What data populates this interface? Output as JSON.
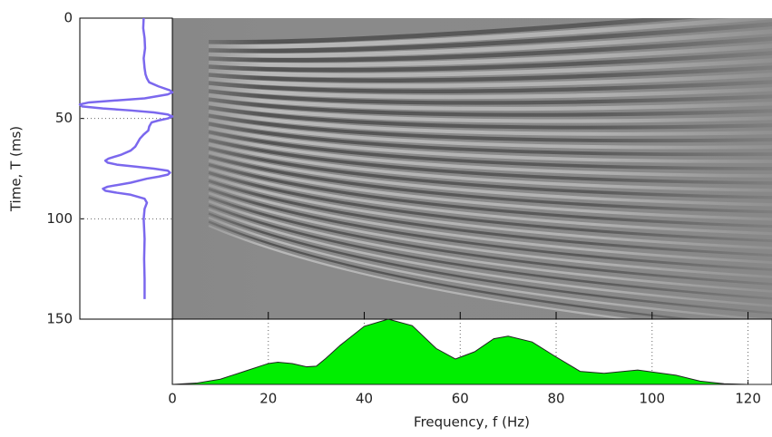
{
  "chart_data": [
    {
      "type": "trace",
      "ylabel": "Time, T (ms)",
      "time": [
        0,
        5,
        10,
        15,
        20,
        25,
        28,
        30,
        32,
        34,
        36,
        37,
        38,
        40,
        41,
        42,
        43,
        44,
        45,
        46,
        47,
        48,
        49,
        50,
        51,
        52,
        54,
        56,
        58,
        60,
        62,
        64,
        66,
        68,
        70,
        71,
        72,
        73,
        74,
        75,
        76,
        77,
        78,
        79,
        80,
        82,
        84,
        85,
        86,
        87,
        88,
        90,
        92,
        95,
        100,
        110,
        120,
        130,
        140
      ],
      "values": [
        -0.02,
        -0.03,
        0,
        0.01,
        -0.02,
        0,
        0.02,
        0.05,
        0.1,
        0.3,
        0.55,
        0.6,
        0.5,
        0,
        -0.6,
        -1.2,
        -1.4,
        -1.35,
        -0.9,
        -0.3,
        0.2,
        0.5,
        0.6,
        0.5,
        0.3,
        0.15,
        0.1,
        0.08,
        -0.02,
        -0.1,
        -0.15,
        -0.2,
        -0.3,
        -0.5,
        -0.78,
        -0.85,
        -0.8,
        -0.6,
        -0.2,
        0.2,
        0.5,
        0.55,
        0.5,
        0.3,
        0.05,
        -0.3,
        -0.8,
        -0.9,
        -0.85,
        -0.6,
        -0.3,
        0,
        0.05,
        0,
        -0.02,
        0,
        -0.01,
        0,
        0
      ],
      "color": "#7b68ee",
      "xlim": [
        -1.4,
        0.6
      ],
      "ylim": [
        0,
        150
      ],
      "yticks": [
        0,
        50,
        100,
        150
      ],
      "grid": true
    },
    {
      "type": "area",
      "xlabel": "Frequency, f (Hz)",
      "x": [
        0,
        5,
        10,
        15,
        20,
        22,
        25,
        28,
        30,
        32,
        35,
        40,
        45,
        50,
        55,
        59,
        63,
        67,
        70,
        75,
        80,
        85,
        90,
        97,
        105,
        110,
        115,
        120,
        125
      ],
      "values": [
        0,
        0.02,
        0.08,
        0.2,
        0.32,
        0.34,
        0.32,
        0.27,
        0.28,
        0.4,
        0.6,
        0.89,
        1.0,
        0.9,
        0.55,
        0.39,
        0.5,
        0.7,
        0.74,
        0.65,
        0.42,
        0.2,
        0.17,
        0.22,
        0.14,
        0.05,
        0.01,
        0,
        0
      ],
      "color": "#00ee00",
      "xlim": [
        0,
        125
      ],
      "ylim": [
        0,
        1
      ],
      "xticks": [
        0,
        20,
        40,
        60,
        80,
        100,
        120
      ],
      "grid": true
    }
  ]
}
